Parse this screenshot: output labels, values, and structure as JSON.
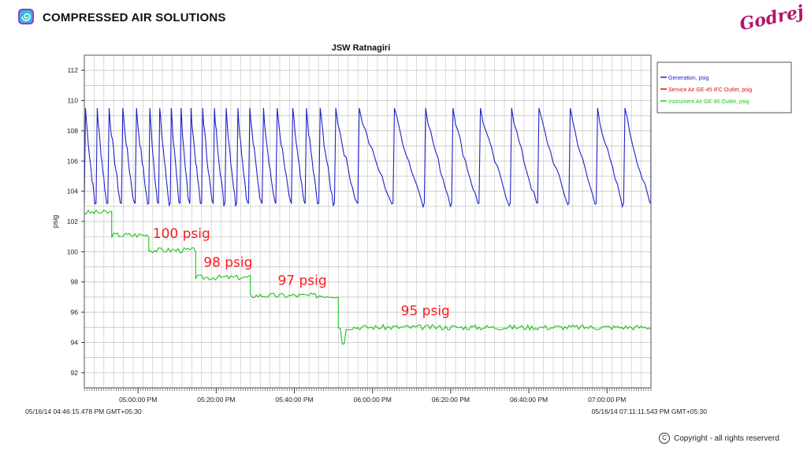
{
  "header": {
    "title": "COMPRESSED AIR SOLUTIONS",
    "logo_icon": "swirl-logo-icon",
    "brand_logo_text": "Godrej",
    "brand_color": "#b0176b"
  },
  "footer": {
    "copyright_icon": "copyright-icon",
    "copyright_text": "Copyright - all rights reserverd"
  },
  "chart_data": {
    "type": "line",
    "title": "JSW Ratnagiri",
    "ylabel": "psig",
    "xlabel": "",
    "ylim": [
      91,
      113
    ],
    "y_ticks": [
      92,
      94,
      96,
      98,
      100,
      102,
      104,
      106,
      108,
      110,
      112
    ],
    "x_range_minutes": [
      0,
      145
    ],
    "x_ticks": [
      {
        "label": "05:00:00 PM",
        "min": 13.75
      },
      {
        "label": "05:20:00 PM",
        "min": 33.75
      },
      {
        "label": "05:40:00 PM",
        "min": 53.75
      },
      {
        "label": "06:00:00 PM",
        "min": 73.75
      },
      {
        "label": "06:20:00 PM",
        "min": 93.75
      },
      {
        "label": "06:40:00 PM",
        "min": 113.75
      },
      {
        "label": "07:00:00 PM",
        "min": 133.75
      }
    ],
    "start_timestamp": "05/16/14 04:46:15.478 PM GMT+05:30",
    "end_timestamp": "05/16/14 07:11:11.543 PM GMT+05:30",
    "grid": true,
    "legend_position": "top-right",
    "series": [
      {
        "name": "Generation, psig",
        "color": "#1f22c8",
        "cycle_peaks_min": [
          0,
          3,
          6,
          9.5,
          13,
          16.5,
          19,
          22,
          24.5,
          27,
          30,
          33,
          36,
          39,
          42,
          45.5,
          49,
          53,
          56.5,
          60,
          64,
          70,
          79,
          87,
          94,
          101,
          109,
          116,
          124,
          131,
          138,
          145
        ],
        "peak_value": 109.5,
        "trough_value": 103.2
      },
      {
        "name": "Service Air GE-45 IFC Outlet, psig",
        "color": "#dd1111",
        "x": [],
        "values": []
      },
      {
        "name": "Instrument Air GE-90 Outlet, psig",
        "color": "#1fc21f",
        "steps": [
          {
            "start": 0,
            "end": 7,
            "value": 102.6
          },
          {
            "start": 7,
            "end": 16.5,
            "value": 101.1
          },
          {
            "start": 16.5,
            "end": 28.5,
            "value": 100.1
          },
          {
            "start": 28.5,
            "end": 42.5,
            "value": 98.3
          },
          {
            "start": 42.5,
            "end": 65,
            "value": 97.1
          },
          {
            "start": 65,
            "end": 145,
            "value": 95.0
          }
        ],
        "dip": {
          "min": 66.3,
          "value": 93.9
        }
      }
    ],
    "annotations": [
      {
        "text": "100 psig",
        "x_min": 17.5,
        "y": 100.9,
        "color": "#ff1a1a"
      },
      {
        "text": "98 psig",
        "x_min": 30.5,
        "y": 99.0,
        "color": "#ff1a1a"
      },
      {
        "text": "97 psig",
        "x_min": 49.5,
        "y": 97.8,
        "color": "#ff1a1a"
      },
      {
        "text": "95 psig",
        "x_min": 81,
        "y": 95.8,
        "color": "#ff1a1a"
      }
    ]
  }
}
